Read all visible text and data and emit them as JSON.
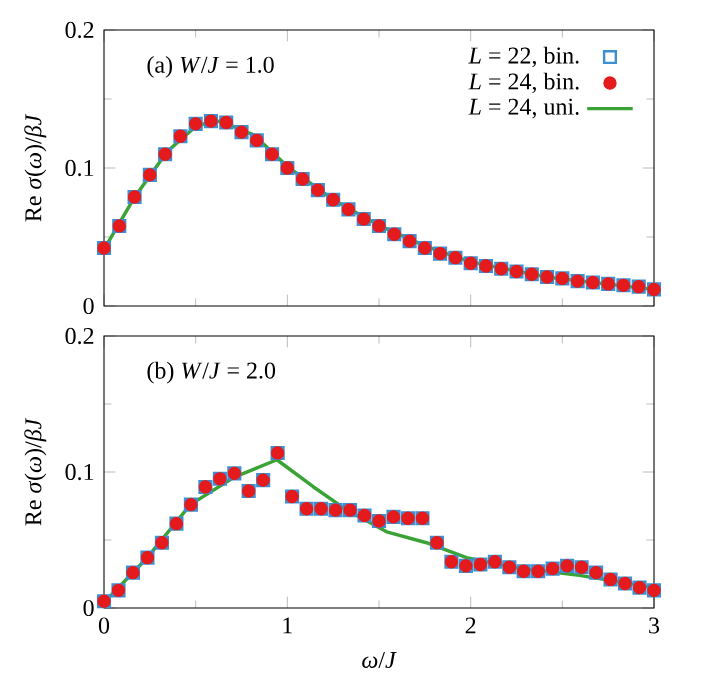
{
  "chart_data": [
    {
      "type": "scatter",
      "annotations": [
        "(a) *W*/*J* = 1.0"
      ],
      "ylabel": "Re *σ*(*ω*)/*βJ*",
      "xlim": [
        0,
        3
      ],
      "ylim": [
        0,
        0.2
      ],
      "xticks": [
        0,
        1,
        2,
        3
      ],
      "yticks": [
        0,
        0.1,
        0.2
      ],
      "tick_labels": "y",
      "legend": "top right",
      "series": [
        {
          "name": "*L* = 22, bin.",
          "marker": "square",
          "color": "#3d8fd1",
          "x": [
            0,
            0.0833,
            0.1667,
            0.25,
            0.3333,
            0.4167,
            0.5,
            0.5833,
            0.6667,
            0.75,
            0.8333,
            0.9167,
            1,
            1.0833,
            1.1667,
            1.25,
            1.3333,
            1.4167,
            1.5,
            1.5833,
            1.6667,
            1.75,
            1.8333,
            1.9167,
            2,
            2.0833,
            2.1667,
            2.25,
            2.3333,
            2.4167,
            2.5,
            2.5833,
            2.6667,
            2.75,
            2.8333,
            2.9167,
            3
          ],
          "values": [
            0.042,
            0.058,
            0.079,
            0.095,
            0.11,
            0.123,
            0.132,
            0.134,
            0.133,
            0.126,
            0.12,
            0.11,
            0.1,
            0.092,
            0.084,
            0.077,
            0.07,
            0.063,
            0.058,
            0.052,
            0.047,
            0.042,
            0.038,
            0.035,
            0.031,
            0.029,
            0.027,
            0.025,
            0.023,
            0.021,
            0.02,
            0.018,
            0.017,
            0.016,
            0.015,
            0.014,
            0.012
          ]
        },
        {
          "name": "*L* = 24, bin.",
          "marker": "circle",
          "color": "#e41a1c",
          "x": [
            0,
            0.0833,
            0.1667,
            0.25,
            0.3333,
            0.4167,
            0.5,
            0.5833,
            0.6667,
            0.75,
            0.8333,
            0.9167,
            1,
            1.0833,
            1.1667,
            1.25,
            1.3333,
            1.4167,
            1.5,
            1.5833,
            1.6667,
            1.75,
            1.8333,
            1.9167,
            2,
            2.0833,
            2.1667,
            2.25,
            2.3333,
            2.4167,
            2.5,
            2.5833,
            2.6667,
            2.75,
            2.8333,
            2.9167,
            3
          ],
          "values": [
            0.042,
            0.058,
            0.079,
            0.095,
            0.11,
            0.123,
            0.132,
            0.134,
            0.133,
            0.126,
            0.12,
            0.11,
            0.1,
            0.092,
            0.084,
            0.077,
            0.07,
            0.063,
            0.058,
            0.052,
            0.047,
            0.042,
            0.038,
            0.035,
            0.031,
            0.029,
            0.027,
            0.025,
            0.023,
            0.021,
            0.02,
            0.018,
            0.017,
            0.016,
            0.015,
            0.014,
            0.012
          ]
        },
        {
          "name": "*L* = 24, uni.",
          "type": "line",
          "marker": "none",
          "color": "#3aa336",
          "x": [
            0,
            0.163,
            0.345,
            0.508,
            0.635,
            0.816,
            1.001,
            1.251,
            1.505,
            1.759,
            1.999,
            2.412,
            3
          ],
          "values": [
            0.041,
            0.078,
            0.112,
            0.131,
            0.134,
            0.124,
            0.101,
            0.077,
            0.058,
            0.043,
            0.032,
            0.021,
            0.012
          ]
        }
      ]
    },
    {
      "type": "scatter",
      "annotations": [
        "(b) *W*/*J* = 2.0"
      ],
      "xlabel": "*ω*/*J*",
      "ylabel": "Re *σ*(*ω*)/*βJ*",
      "xlim": [
        0,
        3
      ],
      "ylim": [
        0,
        0.2
      ],
      "xticks": [
        0,
        1,
        2,
        3
      ],
      "yticks": [
        0,
        0.1,
        0.2
      ],
      "series": [
        {
          "marker": "square",
          "color": "#3d8fd1",
          "x": [
            0,
            0.079,
            0.158,
            0.237,
            0.316,
            0.395,
            0.474,
            0.553,
            0.632,
            0.711,
            0.789,
            0.868,
            0.947,
            1.026,
            1.105,
            1.184,
            1.263,
            1.342,
            1.421,
            1.5,
            1.579,
            1.658,
            1.737,
            1.816,
            1.895,
            1.974,
            2.053,
            2.132,
            2.211,
            2.289,
            2.368,
            2.447,
            2.526,
            2.605,
            2.684,
            2.763,
            2.842,
            2.921,
            3
          ],
          "values": [
            0.005,
            0.013,
            0.026,
            0.037,
            0.048,
            0.062,
            0.076,
            0.089,
            0.095,
            0.099,
            0.086,
            0.094,
            0.114,
            0.082,
            0.073,
            0.073,
            0.072,
            0.072,
            0.068,
            0.064,
            0.067,
            0.066,
            0.066,
            0.048,
            0.034,
            0.031,
            0.032,
            0.034,
            0.03,
            0.027,
            0.027,
            0.029,
            0.031,
            0.03,
            0.026,
            0.021,
            0.018,
            0.015,
            0.013
          ]
        },
        {
          "marker": "circle",
          "color": "#e41a1c",
          "x": [
            0,
            0.079,
            0.158,
            0.237,
            0.316,
            0.395,
            0.474,
            0.553,
            0.632,
            0.711,
            0.789,
            0.868,
            0.947,
            1.026,
            1.105,
            1.184,
            1.263,
            1.342,
            1.421,
            1.5,
            1.579,
            1.658,
            1.737,
            1.816,
            1.895,
            1.974,
            2.053,
            2.132,
            2.211,
            2.289,
            2.368,
            2.447,
            2.526,
            2.605,
            2.684,
            2.763,
            2.842,
            2.921,
            3
          ],
          "values": [
            0.005,
            0.013,
            0.026,
            0.037,
            0.048,
            0.062,
            0.076,
            0.089,
            0.095,
            0.099,
            0.086,
            0.094,
            0.114,
            0.082,
            0.073,
            0.073,
            0.072,
            0.072,
            0.068,
            0.064,
            0.067,
            0.066,
            0.066,
            0.048,
            0.034,
            0.031,
            0.032,
            0.034,
            0.03,
            0.027,
            0.027,
            0.029,
            0.031,
            0.03,
            0.026,
            0.021,
            0.018,
            0.015,
            0.013
          ]
        },
        {
          "type": "line",
          "marker": "none",
          "color": "#3aa336",
          "x": [
            0,
            0.236,
            0.471,
            0.707,
            0.943,
            1.143,
            1.324,
            1.542,
            1.759,
            1.977,
            2.231,
            2.593,
            3
          ],
          "values": [
            0.004,
            0.037,
            0.076,
            0.096,
            0.109,
            0.089,
            0.072,
            0.056,
            0.048,
            0.037,
            0.03,
            0.024,
            0.015
          ]
        }
      ]
    }
  ]
}
